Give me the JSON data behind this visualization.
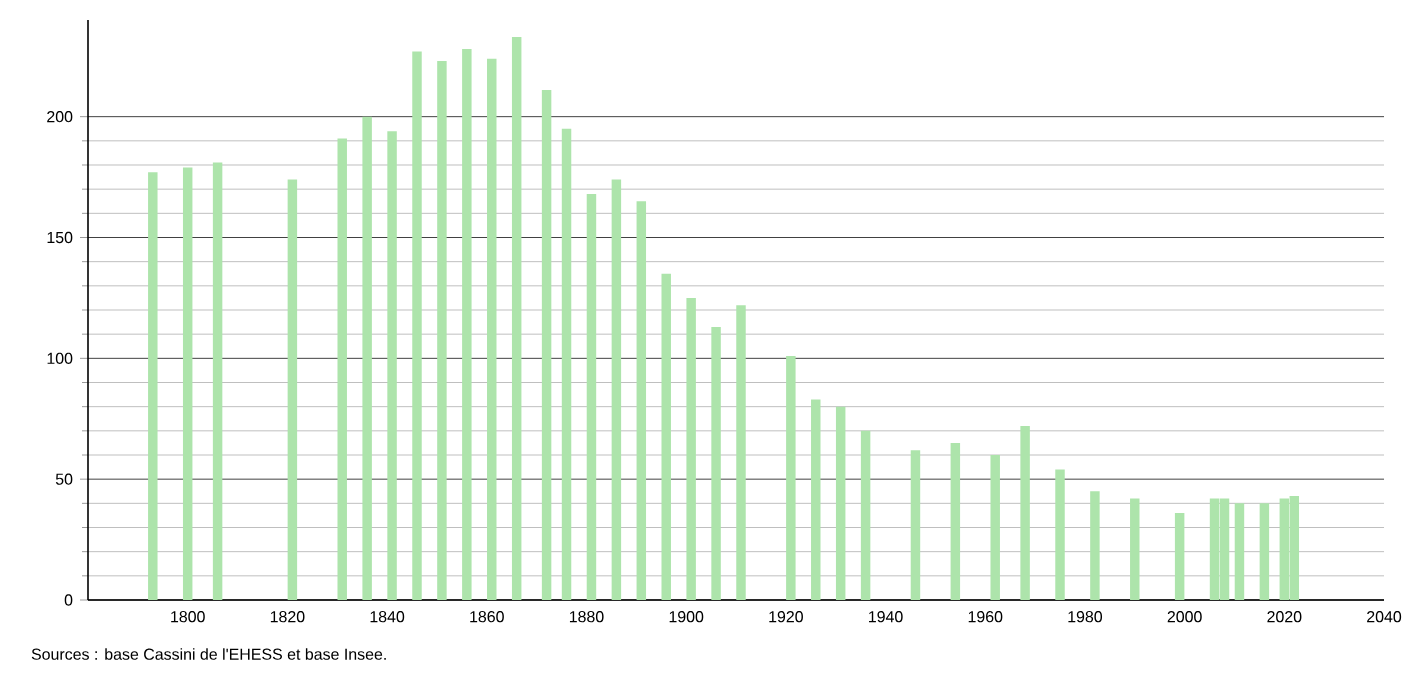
{
  "chart_data": {
    "type": "bar",
    "series": [
      {
        "color": "#ade4ab",
        "x": [
          1793,
          1800,
          1806,
          1821,
          1831,
          1836,
          1841,
          1846,
          1851,
          1856,
          1861,
          1866,
          1872,
          1876,
          1881,
          1886,
          1891,
          1896,
          1901,
          1906,
          1911,
          1921,
          1926,
          1931,
          1936,
          1946,
          1954,
          1962,
          1968,
          1975,
          1982,
          1990,
          1999,
          2006,
          2008,
          2011,
          2016,
          2020,
          2022
        ],
        "values": [
          177,
          179,
          181,
          174,
          191,
          200,
          194,
          227,
          223,
          228,
          224,
          233,
          211,
          195,
          168,
          174,
          165,
          135,
          125,
          113,
          122,
          101,
          83,
          80,
          70,
          62,
          65,
          60,
          72,
          54,
          45,
          42,
          36,
          42,
          42,
          40,
          40,
          42,
          43
        ]
      }
    ],
    "xlim": [
      1780,
      2040
    ],
    "xticks": [
      1800,
      1820,
      1840,
      1860,
      1880,
      1900,
      1920,
      1940,
      1960,
      1980,
      2000,
      2020,
      2040
    ],
    "ylim": [
      0,
      240
    ],
    "yticks": [
      0,
      50,
      100,
      150,
      200
    ],
    "grid": "y",
    "annotations": [
      "Sources : base Cassini de l'EHESS et base Insee."
    ]
  }
}
